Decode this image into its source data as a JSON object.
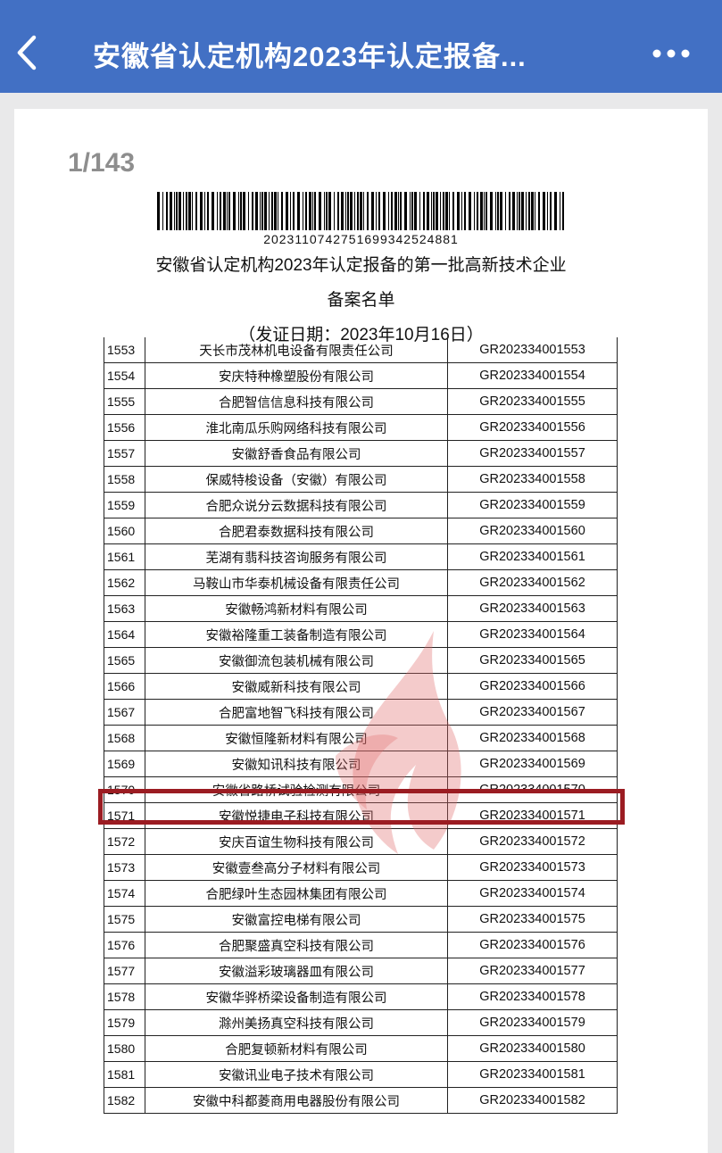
{
  "header": {
    "title": "安徽省认定机构2023年认定报备...",
    "back_icon": "chevron-left-icon",
    "more_icon": "more-horizontal-icon",
    "color": "#4270c4"
  },
  "document": {
    "page_indicator": "1/143",
    "barcode_number": "20231107427516993425248​81",
    "title_line1": "安徽省认定机构2023年认定报备的第一批高新技术企业",
    "title_line2": "备案名单",
    "issue_date": "（发证日期：2023年10月16日）",
    "highlight_color": "#9b1c22",
    "highlighted_row": "1570",
    "rows": [
      {
        "no": "1553",
        "company": "天长市茂林机电设备有限责任公司",
        "cert": "GR202334001553"
      },
      {
        "no": "1554",
        "company": "安庆特种橡塑股份有限公司",
        "cert": "GR202334001554"
      },
      {
        "no": "1555",
        "company": "合肥智信信息科技有限公司",
        "cert": "GR202334001555"
      },
      {
        "no": "1556",
        "company": "淮北南瓜乐购网络科技有限公司",
        "cert": "GR202334001556"
      },
      {
        "no": "1557",
        "company": "安徽舒香食品有限公司",
        "cert": "GR202334001557"
      },
      {
        "no": "1558",
        "company": "保威特梭设备（安徽）有限公司",
        "cert": "GR202334001558"
      },
      {
        "no": "1559",
        "company": "合肥众说分云数据科技有限公司",
        "cert": "GR202334001559"
      },
      {
        "no": "1560",
        "company": "合肥君泰数据科技有限公司",
        "cert": "GR202334001560"
      },
      {
        "no": "1561",
        "company": "芜湖有翡科技咨询服务有限公司",
        "cert": "GR202334001561"
      },
      {
        "no": "1562",
        "company": "马鞍山市华泰机械设备有限责任公司",
        "cert": "GR202334001562"
      },
      {
        "no": "1563",
        "company": "安徽畅鸿新材料有限公司",
        "cert": "GR202334001563"
      },
      {
        "no": "1564",
        "company": "安徽裕隆重工装备制造有限公司",
        "cert": "GR202334001564"
      },
      {
        "no": "1565",
        "company": "安徽御流包装机械有限公司",
        "cert": "GR202334001565"
      },
      {
        "no": "1566",
        "company": "安徽威新科技有限公司",
        "cert": "GR202334001566"
      },
      {
        "no": "1567",
        "company": "合肥富地智飞科技有限公司",
        "cert": "GR202334001567"
      },
      {
        "no": "1568",
        "company": "安徽恒隆新材料有限公司",
        "cert": "GR202334001568"
      },
      {
        "no": "1569",
        "company": "安徽知讯科技有限公司",
        "cert": "GR202334001569"
      },
      {
        "no": "1570",
        "company": "安徽省路桥试验检测有限公司",
        "cert": "GR202334001570"
      },
      {
        "no": "1571",
        "company": "安徽悦捷电子科技有限公司",
        "cert": "GR202334001571"
      },
      {
        "no": "1572",
        "company": "安庆百谊生物科技有限公司",
        "cert": "GR202334001572"
      },
      {
        "no": "1573",
        "company": "安徽壹叁高分子材料有限公司",
        "cert": "GR202334001573"
      },
      {
        "no": "1574",
        "company": "合肥绿叶生态园林集团有限公司",
        "cert": "GR202334001574"
      },
      {
        "no": "1575",
        "company": "安徽富控电梯有限公司",
        "cert": "GR202334001575"
      },
      {
        "no": "1576",
        "company": "合肥聚盛真空科技有限公司",
        "cert": "GR202334001576"
      },
      {
        "no": "1577",
        "company": "安徽溢彩玻璃器皿有限公司",
        "cert": "GR202334001577"
      },
      {
        "no": "1578",
        "company": "安徽华骅桥梁设备制造有限公司",
        "cert": "GR202334001578"
      },
      {
        "no": "1579",
        "company": "滁州美扬真空科技有限公司",
        "cert": "GR202334001579"
      },
      {
        "no": "1580",
        "company": "合肥复顿新材料有限公司",
        "cert": "GR202334001580"
      },
      {
        "no": "1581",
        "company": "安徽讯业电子技术有限公司",
        "cert": "GR202334001581"
      },
      {
        "no": "1582",
        "company": "安徽中科都菱商用电器股份有限公司",
        "cert": "GR202334001582"
      }
    ]
  }
}
